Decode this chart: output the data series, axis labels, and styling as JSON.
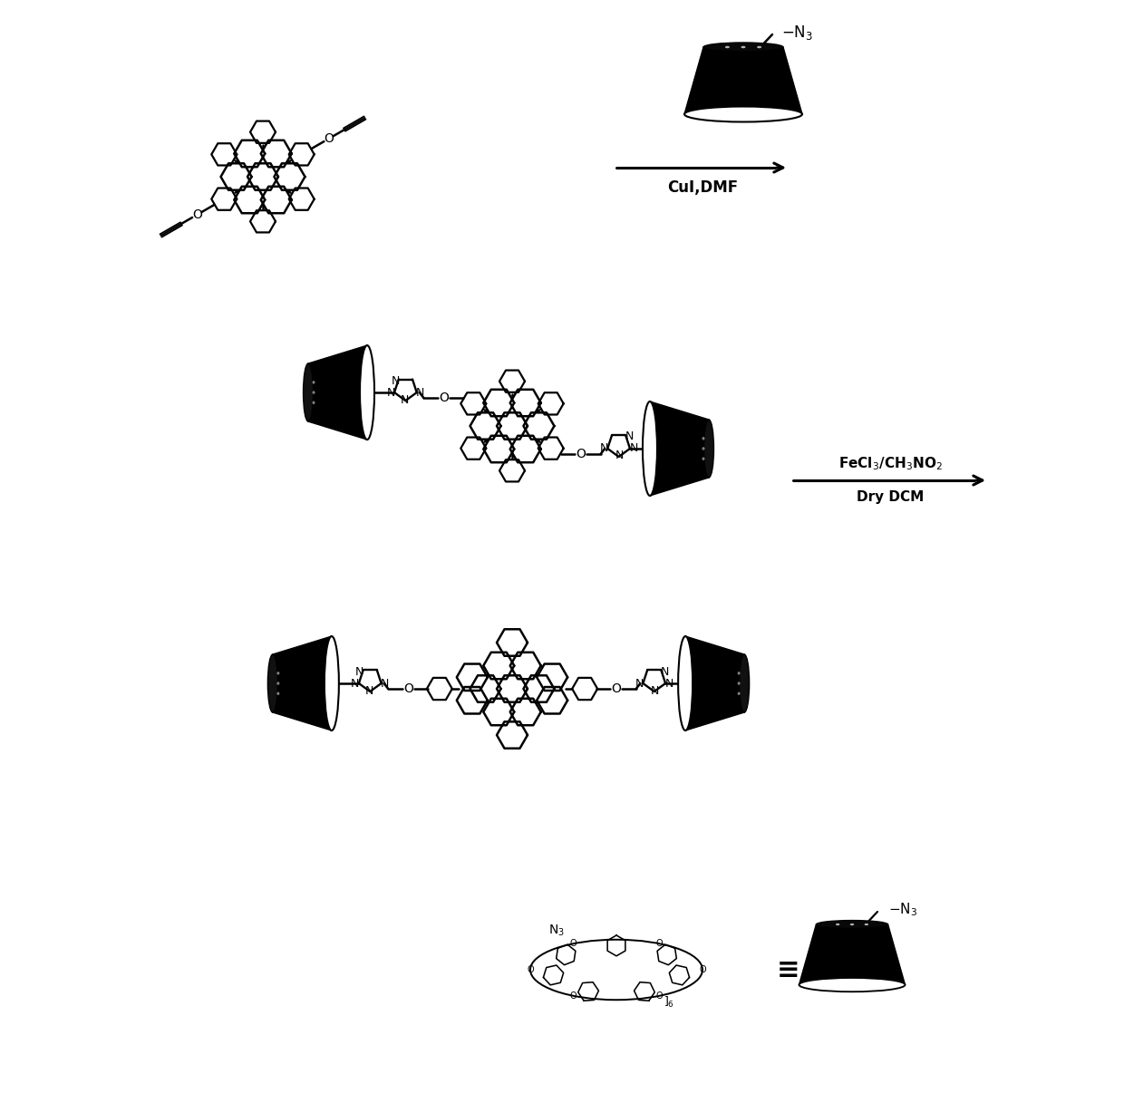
{
  "bg": "#ffffff",
  "figsize": [
    12.4,
    12.06
  ],
  "dpi": 100,
  "label_cuiDMF": "CuI,DMF",
  "label_fecl3": "FeCl$_3$/CH$_3$NO$_2$",
  "label_drydcm": "Dry DCM",
  "label_n3_top": "-N$_3$",
  "label_equiv": "≡",
  "label_n3_bottom": "-N$_3$"
}
